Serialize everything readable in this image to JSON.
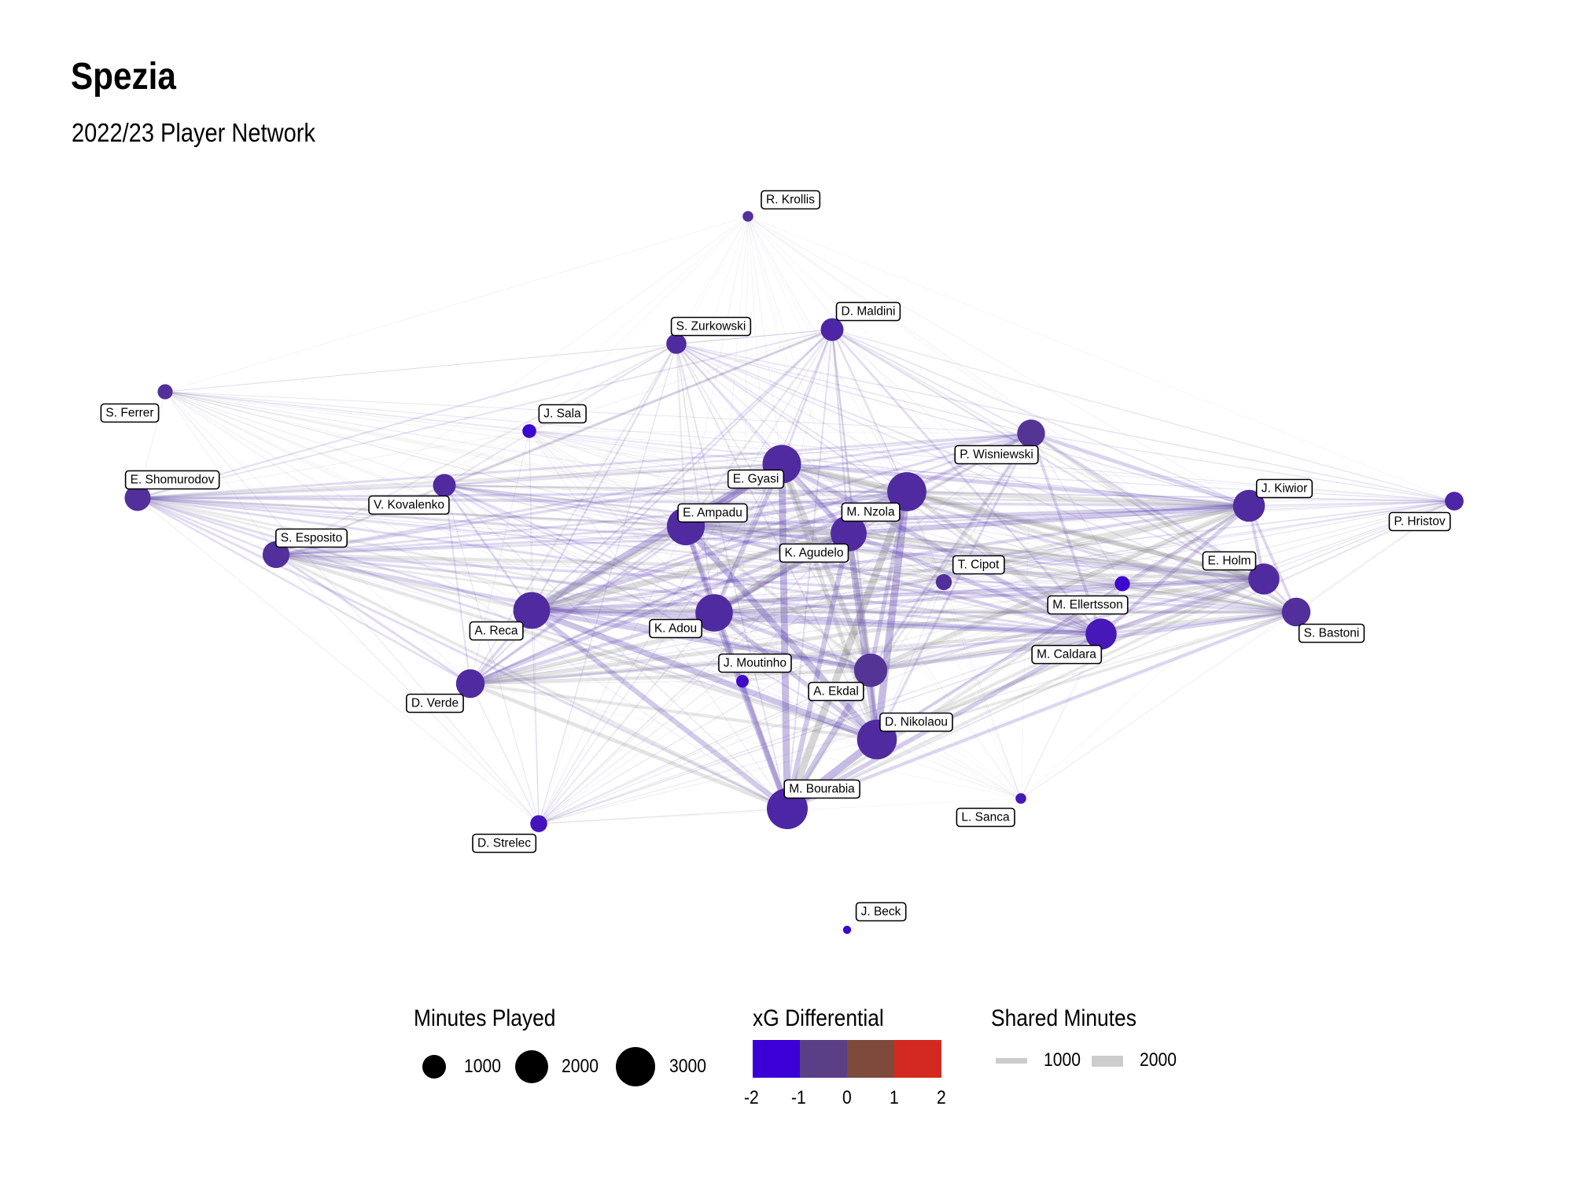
{
  "title": "Spezia",
  "subtitle": "2022/23 Player Network",
  "colors": {
    "xg_scale": [
      "#3a00d6",
      "#5a3f86",
      "#7d4a3b",
      "#d42920"
    ],
    "edge_gray": "#8c8c8c",
    "edge_purple": "#5b3fb0"
  },
  "nodes": [
    {
      "id": "R. Krollis",
      "label": "R. Krollis",
      "minutes": 50,
      "xg": -1.0
    },
    {
      "id": "D. Maldini",
      "label": "D. Maldini",
      "minutes": 700,
      "xg": -1.2
    },
    {
      "id": "S. Zurkowski",
      "label": "S. Zurkowski",
      "minutes": 500,
      "xg": -1.1
    },
    {
      "id": "S. Ferrer",
      "label": "S. Ferrer",
      "minutes": 200,
      "xg": -1.0
    },
    {
      "id": "J. Sala",
      "label": "J. Sala",
      "minutes": 150,
      "xg": -1.9
    },
    {
      "id": "P. Wisniewski",
      "label": "P. Wisniewski",
      "minutes": 1200,
      "xg": -0.9
    },
    {
      "id": "E. Gyasi",
      "label": "E. Gyasi",
      "minutes": 2700,
      "xg": -1.1
    },
    {
      "id": "E. Shomurodov",
      "label": "E. Shomurodov",
      "minutes": 1000,
      "xg": -1.0
    },
    {
      "id": "V. Kovalenko",
      "label": "V. Kovalenko",
      "minutes": 700,
      "xg": -1.1
    },
    {
      "id": "M. Nzola",
      "label": "M. Nzola",
      "minutes": 2800,
      "xg": -1.1
    },
    {
      "id": "E. Ampadu",
      "label": "E. Ampadu",
      "minutes": 2600,
      "xg": -1.1
    },
    {
      "id": "J. Kiwior",
      "label": "J. Kiwior",
      "minutes": 1700,
      "xg": -1.1
    },
    {
      "id": "P. Hristov",
      "label": "P. Hristov",
      "minutes": 400,
      "xg": -1.2
    },
    {
      "id": "S. Esposito",
      "label": "S. Esposito",
      "minutes": 1100,
      "xg": -1.0
    },
    {
      "id": "K. Agudelo",
      "label": "K. Agudelo",
      "minutes": 2300,
      "xg": -1.1
    },
    {
      "id": "T. Cipot",
      "label": "T. Cipot",
      "minutes": 250,
      "xg": -1.0
    },
    {
      "id": "E. Holm",
      "label": "E. Holm",
      "minutes": 1600,
      "xg": -1.1
    },
    {
      "id": "M. Ellertsson",
      "label": "M. Ellertsson",
      "minutes": 200,
      "xg": -1.9
    },
    {
      "id": "S. Bastoni",
      "label": "S. Bastoni",
      "minutes": 1300,
      "xg": -1.0
    },
    {
      "id": "A. Reca",
      "label": "A. Reca",
      "minutes": 2400,
      "xg": -1.1
    },
    {
      "id": "K. Adou",
      "label": "K. Adou",
      "minutes": 2500,
      "xg": -1.1
    },
    {
      "id": "M. Caldara",
      "label": "M. Caldara",
      "minutes": 1600,
      "xg": -1.5
    },
    {
      "id": "J. Moutinho",
      "label": "J. Moutinho",
      "minutes": 100,
      "xg": -1.8
    },
    {
      "id": "A. Ekdal",
      "label": "A. Ekdal",
      "minutes": 1900,
      "xg": -0.9
    },
    {
      "id": "D. Verde",
      "label": "D. Verde",
      "minutes": 1300,
      "xg": -1.1
    },
    {
      "id": "D. Nikolaou",
      "label": "D. Nikolaou",
      "minutes": 2900,
      "xg": -1.1
    },
    {
      "id": "M. Bourabia",
      "label": "M. Bourabia",
      "minutes": 3100,
      "xg": -1.2
    },
    {
      "id": "L. Sanca",
      "label": "L. Sanca",
      "minutes": 50,
      "xg": -1.5
    },
    {
      "id": "D. Strelec",
      "label": "D. Strelec",
      "minutes": 300,
      "xg": -1.6
    },
    {
      "id": "J. Beck",
      "label": "J. Beck",
      "minutes": 10,
      "xg": -1.9
    }
  ],
  "legends": {
    "minutes": {
      "title": "Minutes Played",
      "items": [
        {
          "label": "1000",
          "value": 1000
        },
        {
          "label": "2000",
          "value": 2000
        },
        {
          "label": "3000",
          "value": 3000
        }
      ]
    },
    "xg": {
      "title": "xG Differential",
      "ticks": [
        "-2",
        "-1",
        "0",
        "1",
        "2"
      ]
    },
    "shared": {
      "title": "Shared Minutes",
      "items": [
        {
          "label": "1000",
          "value": 1000
        },
        {
          "label": "2000",
          "value": 2000
        }
      ]
    }
  }
}
